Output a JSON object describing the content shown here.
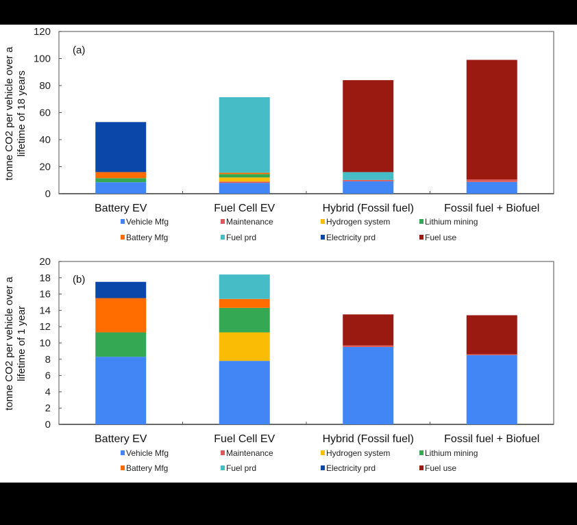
{
  "chart_data": [
    {
      "type": "bar",
      "stacked": true,
      "panel_label": "(a)",
      "title": "",
      "xlabel": "",
      "ylabel": [
        "tonne CO2 per vehicle over a",
        "lifetime of 18 years"
      ],
      "ylim": [
        0,
        120
      ],
      "yticks": [
        0,
        20,
        40,
        60,
        80,
        100,
        120
      ],
      "grid": false,
      "legend_position": "bottom",
      "categories": [
        "Battery EV",
        "Fuel Cell EV",
        "Hybrid (Fossil fuel)",
        "Fossil fuel + Biofuel"
      ],
      "series": [
        {
          "name": "Vehicle Mfg",
          "color": "#4285f4",
          "values": [
            8.5,
            8.0,
            9.2,
            8.7
          ]
        },
        {
          "name": "Maintenance",
          "color": "#db5a5a",
          "values": [
            0,
            1.0,
            1.0,
            1.8
          ]
        },
        {
          "name": "Hydrogen system",
          "color": "#fbbc05",
          "values": [
            0,
            3.0,
            0,
            0
          ]
        },
        {
          "name": "Lithium mining",
          "color": "#34a853",
          "values": [
            3.0,
            2.5,
            0,
            0
          ]
        },
        {
          "name": "Battery Mfg",
          "color": "#ff6d01",
          "values": [
            4.5,
            1.0,
            0,
            0
          ]
        },
        {
          "name": "Fuel prd",
          "color": "#46bdc6",
          "values": [
            0,
            55.9,
            5.8,
            0
          ]
        },
        {
          "name": "Electricity prd",
          "color": "#0b47a8",
          "values": [
            37.0,
            0,
            0,
            0
          ]
        },
        {
          "name": "Fuel use",
          "color": "#9a1a12",
          "values": [
            0,
            0,
            68.0,
            88.5
          ]
        }
      ]
    },
    {
      "type": "bar",
      "stacked": true,
      "panel_label": "(b)",
      "title": "",
      "xlabel": "",
      "ylabel": [
        "tonne CO2 per vehicle over a",
        "lifetime of 1 year"
      ],
      "ylim": [
        0,
        20
      ],
      "yticks": [
        0,
        2,
        4,
        6,
        8,
        10,
        12,
        14,
        16,
        18,
        20
      ],
      "grid": false,
      "legend_position": "bottom",
      "categories": [
        "Battery EV",
        "Fuel Cell EV",
        "Hybrid (Fossil fuel)",
        "Fossil fuel + Biofuel"
      ],
      "series": [
        {
          "name": "Vehicle Mfg",
          "color": "#4285f4",
          "values": [
            8.3,
            7.8,
            9.5,
            8.5
          ]
        },
        {
          "name": "Maintenance",
          "color": "#db5a5a",
          "values": [
            0,
            0,
            0.2,
            0.1
          ]
        },
        {
          "name": "Hydrogen system",
          "color": "#fbbc05",
          "values": [
            0,
            3.5,
            0,
            0
          ]
        },
        {
          "name": "Lithium mining",
          "color": "#34a853",
          "values": [
            3.0,
            3.0,
            0,
            0
          ]
        },
        {
          "name": "Battery Mfg",
          "color": "#ff6d01",
          "values": [
            4.2,
            1.1,
            0,
            0
          ]
        },
        {
          "name": "Fuel prd",
          "color": "#46bdc6",
          "values": [
            0,
            3.0,
            0,
            0
          ]
        },
        {
          "name": "Electricity prd",
          "color": "#0b47a8",
          "values": [
            2.0,
            0,
            0,
            0
          ]
        },
        {
          "name": "Fuel use",
          "color": "#9a1a12",
          "values": [
            0,
            0,
            3.8,
            4.8
          ]
        }
      ]
    }
  ],
  "legend_order": [
    [
      "Vehicle Mfg",
      "Maintenance",
      "Hydrogen system",
      "Lithium mining"
    ],
    [
      "Battery Mfg",
      "Fuel prd",
      "Electricity prd",
      "Fuel use"
    ]
  ]
}
